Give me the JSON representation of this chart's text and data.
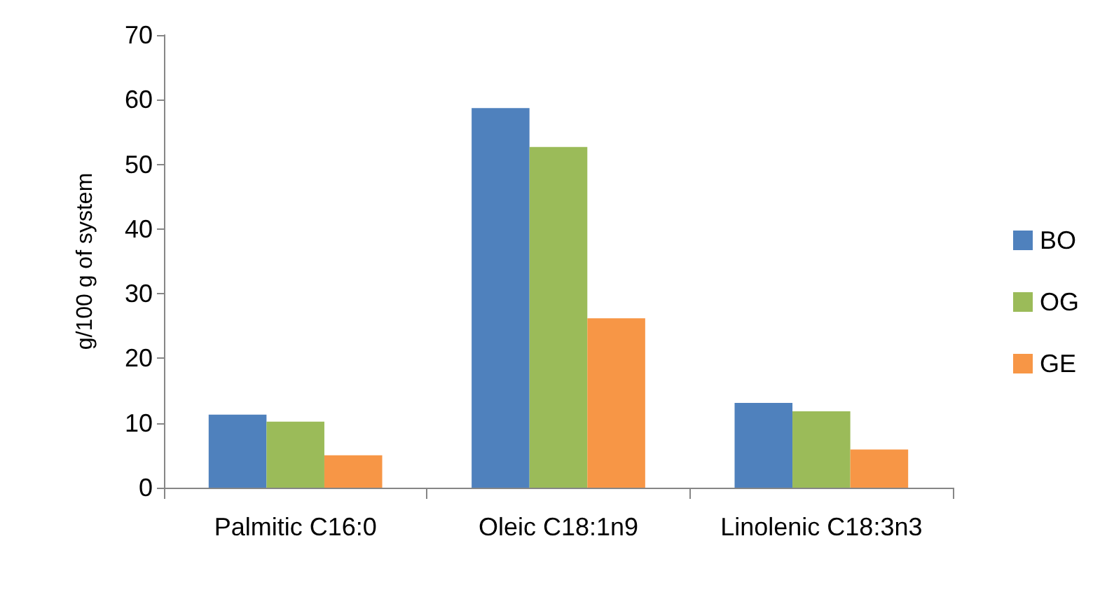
{
  "chart_data": {
    "type": "bar",
    "ylabel": "g/100 g of system",
    "categories": [
      "Palmitic C16:0",
      "Oleic C18:1n9",
      "Linolenic C18:3n3"
    ],
    "series": [
      {
        "name": "BO",
        "color": "#4f81bd",
        "values": [
          11.3,
          58.7,
          13.1
        ]
      },
      {
        "name": "OG",
        "color": "#9bbb59",
        "values": [
          10.2,
          52.7,
          11.8
        ]
      },
      {
        "name": "GE",
        "color": "#f79646",
        "values": [
          5.0,
          26.2,
          5.9
        ]
      }
    ],
    "ylim": [
      0,
      70
    ],
    "yticks": [
      0,
      10,
      20,
      30,
      40,
      50,
      60,
      70
    ],
    "grid": false,
    "legend": "right"
  }
}
